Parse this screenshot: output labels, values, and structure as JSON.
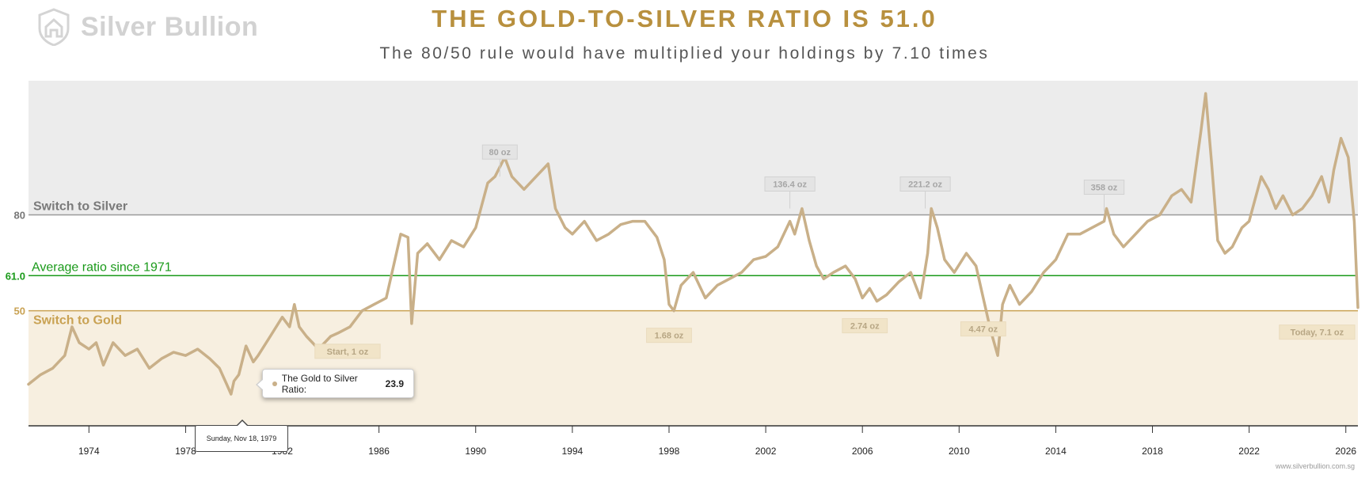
{
  "brand": {
    "name": "Silver Bullion",
    "credit": "www.silverbullion.com.sg"
  },
  "header": {
    "title": "THE GOLD-TO-SILVER RATIO IS 51.0",
    "subtitle": "The 80/50 rule would have multiplied your holdings by 7.10 times"
  },
  "tooltip": {
    "series_label": "The Gold to Silver Ratio:",
    "value": "23.9",
    "date": "Sunday, Nov 18, 1979"
  },
  "chart_data": {
    "type": "line",
    "title": "THE GOLD-TO-SILVER RATIO IS 51.0",
    "subtitle": "The 80/50 rule would have multiplied your holdings by 7.10 times",
    "xlabel": "",
    "ylabel": "",
    "xlim": [
      1971.5,
      2026.5
    ],
    "ylim": [
      14,
      122
    ],
    "grid": false,
    "x_ticks": [
      "1974",
      "1978",
      "1982",
      "1986",
      "1990",
      "1994",
      "1998",
      "2002",
      "2006",
      "2010",
      "2014",
      "2018",
      "2022",
      "2026"
    ],
    "y_ticks": [
      "80",
      "61.0",
      "50"
    ],
    "colors": {
      "line": "#c9b089",
      "silver_zone": "#ececec",
      "gold_zone": "#f7efe0",
      "average": "#1a9a1a",
      "gold_text": "#c9a253",
      "silver_text": "#7a7a7a"
    },
    "bands": [
      {
        "label": "Switch to Silver",
        "from": 80,
        "to": 122
      },
      {
        "label": "Switch to Gold",
        "from": 14,
        "to": 50
      }
    ],
    "reference_lines": [
      {
        "label": "Switch to Silver",
        "value": 80
      },
      {
        "label": "Average ratio since 1971",
        "value": 61.0
      },
      {
        "label": "Switch to Gold",
        "value": 50
      }
    ],
    "series": [
      {
        "name": "The Gold to Silver Ratio",
        "x": [
          1971.5,
          1972.0,
          1972.5,
          1973.0,
          1973.3,
          1973.6,
          1974.0,
          1974.3,
          1974.6,
          1975.0,
          1975.5,
          1976.0,
          1976.5,
          1977.0,
          1977.5,
          1978.0,
          1978.5,
          1979.0,
          1979.4,
          1979.7,
          1979.88,
          1980.0,
          1980.2,
          1980.5,
          1980.8,
          1981.0,
          1981.5,
          1982.0,
          1982.3,
          1982.5,
          1982.7,
          1983.0,
          1983.5,
          1984.0,
          1984.3,
          1984.8,
          1985.3,
          1985.8,
          1986.3,
          1986.6,
          1986.9,
          1987.2,
          1987.35,
          1987.6,
          1988.0,
          1988.5,
          1989.0,
          1989.5,
          1990.0,
          1990.5,
          1990.8,
          1991.2,
          1991.5,
          1992.0,
          1992.5,
          1993.0,
          1993.3,
          1993.7,
          1994.0,
          1994.5,
          1995.0,
          1995.5,
          1996.0,
          1996.5,
          1997.0,
          1997.5,
          1997.8,
          1998.0,
          1998.2,
          1998.5,
          1999.0,
          1999.5,
          2000.0,
          2000.5,
          2001.0,
          2001.5,
          2002.0,
          2002.5,
          2003.0,
          2003.2,
          2003.5,
          2003.8,
          2004.1,
          2004.4,
          2004.8,
          2005.3,
          2005.7,
          2006.0,
          2006.3,
          2006.6,
          2007.0,
          2007.5,
          2008.0,
          2008.4,
          2008.7,
          2008.85,
          2009.1,
          2009.4,
          2009.8,
          2010.3,
          2010.7,
          2011.0,
          2011.3,
          2011.6,
          2011.8,
          2012.1,
          2012.5,
          2013.0,
          2013.5,
          2014.0,
          2014.5,
          2015.0,
          2015.5,
          2016.0,
          2016.1,
          2016.4,
          2016.8,
          2017.3,
          2017.8,
          2018.3,
          2018.8,
          2019.2,
          2019.6,
          2020.0,
          2020.2,
          2020.45,
          2020.7,
          2021.0,
          2021.3,
          2021.7,
          2022.0,
          2022.5,
          2022.8,
          2023.1,
          2023.4,
          2023.8,
          2024.2,
          2024.6,
          2025.0,
          2025.3,
          2025.5,
          2025.8,
          2026.1,
          2026.35,
          2026.5
        ],
        "values": [
          27,
          30,
          32,
          36,
          45,
          40,
          38,
          40,
          33,
          40,
          36,
          38,
          32,
          35,
          37,
          36,
          38,
          35,
          32,
          27,
          23.9,
          28,
          30,
          39,
          34,
          36,
          42,
          48,
          45,
          52,
          45,
          42,
          38,
          42,
          43,
          45,
          50,
          52,
          54,
          64,
          74,
          73,
          46,
          68,
          71,
          66,
          72,
          70,
          76,
          90,
          92,
          98,
          92,
          88,
          92,
          96,
          82,
          76,
          74,
          78,
          72,
          74,
          77,
          78,
          78,
          73,
          66,
          52,
          50,
          58,
          62,
          54,
          58,
          60,
          62,
          66,
          67,
          70,
          78,
          74,
          82,
          72,
          64,
          60,
          62,
          64,
          60,
          54,
          57,
          53,
          55,
          59,
          62,
          54,
          68,
          82,
          76,
          66,
          62,
          68,
          64,
          54,
          44,
          36,
          52,
          58,
          52,
          56,
          62,
          66,
          74,
          74,
          76,
          78,
          82,
          74,
          70,
          74,
          78,
          80,
          86,
          88,
          84,
          106,
          118,
          96,
          72,
          68,
          70,
          76,
          78,
          92,
          88,
          82,
          86,
          80,
          82,
          86,
          92,
          84,
          94,
          104,
          98,
          78,
          51.0
        ]
      }
    ],
    "annotations": [
      {
        "x": 1984.7,
        "y": 45,
        "text": "Start, 1 oz",
        "position": "below"
      },
      {
        "x": 1991.0,
        "y": 92,
        "text": "80 oz",
        "position": "above"
      },
      {
        "x": 1998.0,
        "y": 50,
        "text": "1.68 oz",
        "position": "below"
      },
      {
        "x": 2003.0,
        "y": 82,
        "text": "136.4 oz",
        "position": "above"
      },
      {
        "x": 2006.1,
        "y": 53,
        "text": "2.74 oz",
        "position": "below"
      },
      {
        "x": 2008.6,
        "y": 82,
        "text": "221.2 oz",
        "position": "above"
      },
      {
        "x": 2011.0,
        "y": 52,
        "text": "4.47 oz",
        "position": "below"
      },
      {
        "x": 2016.0,
        "y": 81,
        "text": "358 oz",
        "position": "above"
      },
      {
        "x": 2026.4,
        "y": 51,
        "text": "Today, 7.1 oz",
        "position": "below"
      }
    ]
  }
}
